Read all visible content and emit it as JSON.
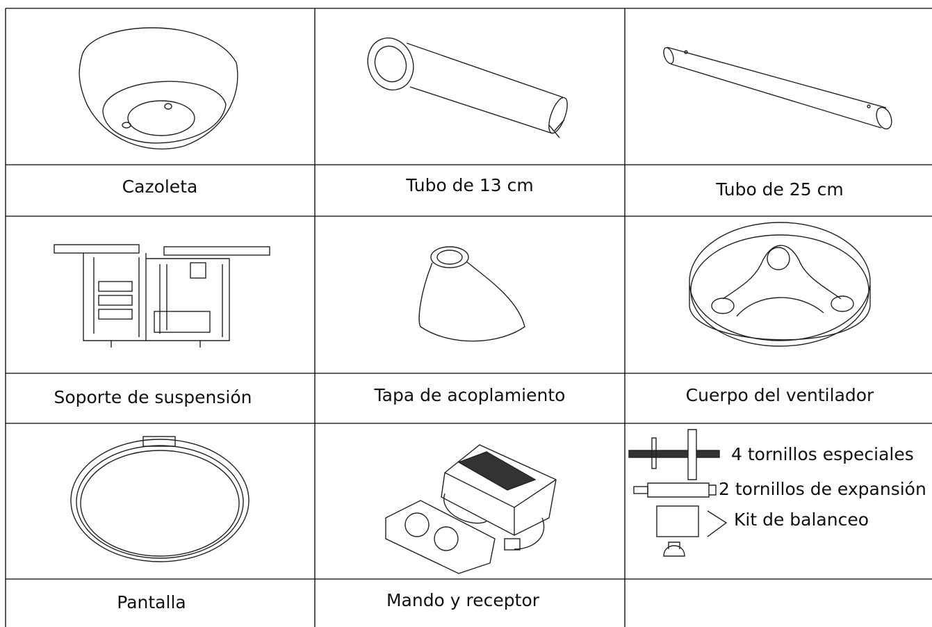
{
  "parts": [
    "Cazoleta",
    "Tubo de 13 cm",
    "Tubo de 25 cm",
    "Soporte de suspensión",
    "Tapa de acoplamiento",
    "Cuerpo del ventilador",
    "Pantalla",
    "Mando y receptor"
  ],
  "hardware": [
    "4 tornillos especiales",
    "2 tornillos de expansión",
    "Kit de balanceo"
  ]
}
